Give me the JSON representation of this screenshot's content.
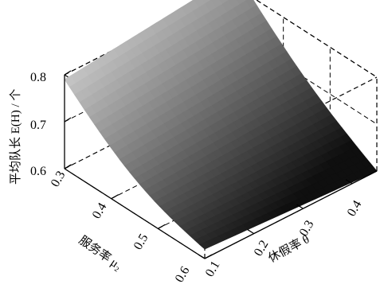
{
  "chart_data": {
    "type": "surface3d",
    "zlabel": "平均队长 E(H) / 个",
    "xlabel": "服务率 μ₂",
    "ylabel": "休假率 θ",
    "xticks": [
      "0.3",
      "0.4",
      "0.5",
      "0.6"
    ],
    "yticks": [
      "0.1",
      "0.2",
      "0.3",
      "0.4"
    ],
    "zticks": [
      "0.6",
      "0.7",
      "0.8"
    ],
    "xlim": [
      0.3,
      0.6
    ],
    "ylim": [
      0.1,
      0.45
    ],
    "zlim": [
      0.6,
      0.8
    ],
    "surface": {
      "x": [
        0.3,
        0.6
      ],
      "y": [
        0.1,
        0.45
      ],
      "corner_z": {
        "x0.3_y0.1": 0.79,
        "x0.3_y0.45": 0.83,
        "x0.6_y0.1": 0.62,
        "x0.6_y0.45": 0.6
      },
      "colormap": "gray",
      "grid": true
    }
  }
}
